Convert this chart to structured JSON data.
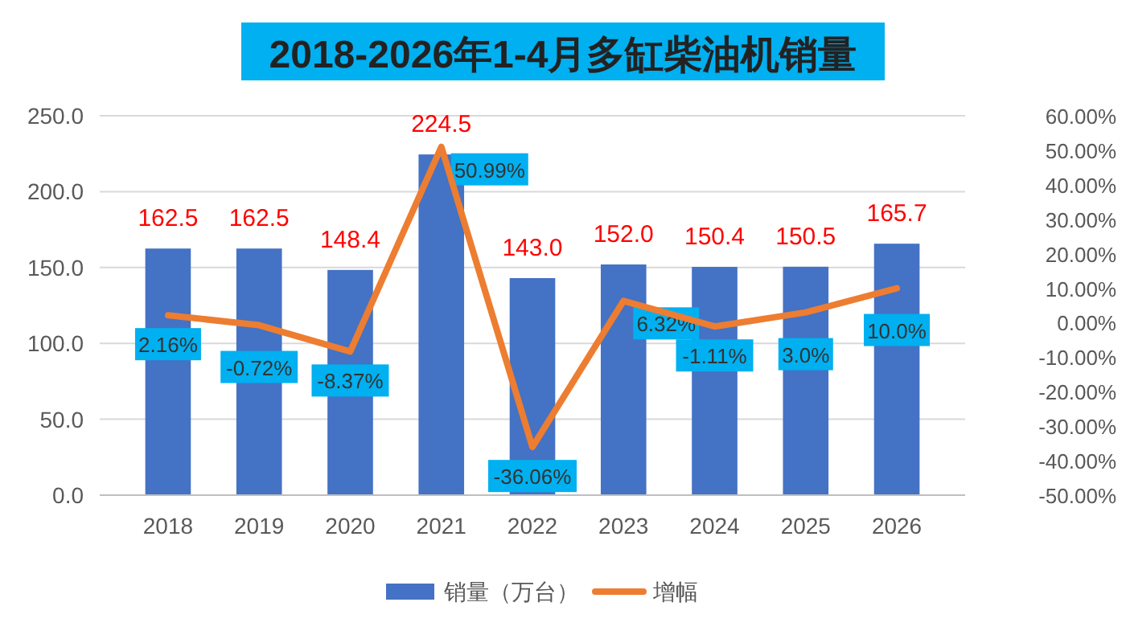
{
  "chart_data": {
    "type": "bar",
    "title": "2018-2026年1-4月多缸柴油机销量",
    "categories": [
      "2018",
      "2019",
      "2020",
      "2021",
      "2022",
      "2023",
      "2024",
      "2025",
      "2026"
    ],
    "series": [
      {
        "name": "销量（万台）",
        "color": "#4472c4",
        "values": [
          162.5,
          162.5,
          148.4,
          224.5,
          143.0,
          152.0,
          150.4,
          150.5,
          165.7
        ],
        "value_labels": [
          "162.5",
          "162.5",
          "148.4",
          "224.5",
          "143.0",
          "152.0",
          "150.4",
          "150.5",
          "165.7"
        ]
      },
      {
        "name": "增幅",
        "type": "line",
        "axis": "y2",
        "color": "#ed7d31",
        "values": [
          2.16,
          -0.72,
          -8.37,
          50.99,
          -36.06,
          6.32,
          -1.11,
          3.0,
          10.0
        ],
        "value_labels": [
          "2.16%",
          "-0.72%",
          "-8.37%",
          "50.99%",
          "-36.06%",
          "6.32%",
          "-1.11%",
          "3.0%",
          "10.0%"
        ]
      }
    ],
    "ylim": [
      0,
      250
    ],
    "yticks": [
      {
        "value": 0,
        "label": "0.0"
      },
      {
        "value": 50,
        "label": "50.0"
      },
      {
        "value": 100,
        "label": "100.0"
      },
      {
        "value": 150,
        "label": "150.0"
      },
      {
        "value": 200,
        "label": "200.0"
      },
      {
        "value": 250,
        "label": "250.0"
      }
    ],
    "y2lim": [
      -50,
      60
    ],
    "y2ticks": [
      {
        "value": -50,
        "label": "-50.00%"
      },
      {
        "value": -40,
        "label": "-40.00%"
      },
      {
        "value": -30,
        "label": "-30.00%"
      },
      {
        "value": -20,
        "label": "-20.00%"
      },
      {
        "value": -10,
        "label": "-10.00%"
      },
      {
        "value": 0,
        "label": "0.00%"
      },
      {
        "value": 10,
        "label": "10.00%"
      },
      {
        "value": 20,
        "label": "20.00%"
      },
      {
        "value": 30,
        "label": "30.00%"
      },
      {
        "value": 40,
        "label": "40.00%"
      },
      {
        "value": 50,
        "label": "50.00%"
      },
      {
        "value": 60,
        "label": "60.00%"
      }
    ],
    "grid": "y",
    "legend": "bottom"
  }
}
